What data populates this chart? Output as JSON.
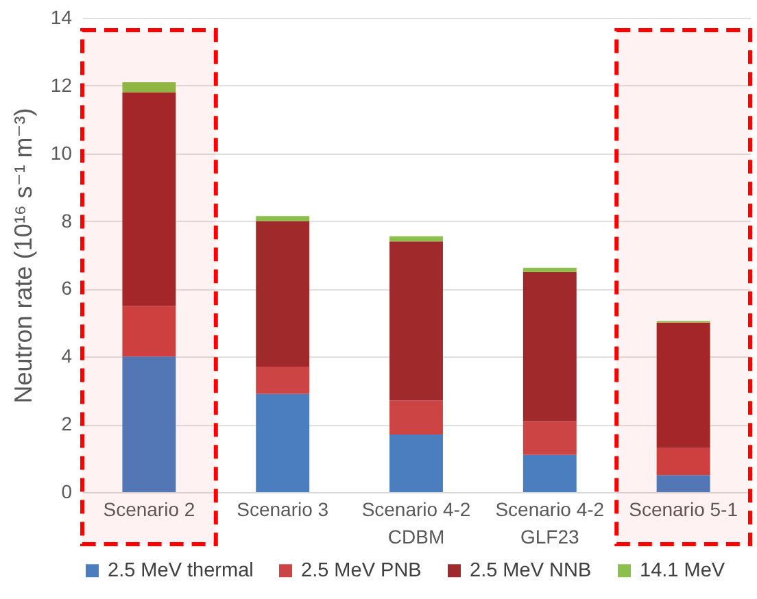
{
  "chart_data": {
    "type": "bar",
    "stacked": true,
    "ylabel": "Neutron rate (10¹⁶ s⁻¹ m⁻³)",
    "categories": [
      "Scenario 2",
      "Scenario 3",
      "Scenario 4-2\nCDBM",
      "Scenario 4-2\nGLF23",
      "Scenario 5-1"
    ],
    "series": [
      {
        "name": "2.5 MeV thermal",
        "color": "#4a7ebf",
        "values": [
          4.0,
          2.9,
          1.7,
          1.1,
          0.5
        ]
      },
      {
        "name": "2.5 MeV PNB",
        "color": "#cc4444",
        "values": [
          1.5,
          0.8,
          1.0,
          1.0,
          0.8
        ]
      },
      {
        "name": "2.5 MeV NNB",
        "color": "#a0292c",
        "values": [
          6.3,
          4.3,
          4.7,
          4.4,
          3.7
        ]
      },
      {
        "name": "14.1 MeV",
        "color": "#8dc04a",
        "values": [
          0.3,
          0.15,
          0.15,
          0.12,
          0.05
        ]
      }
    ],
    "ylim": [
      0,
      14
    ],
    "yticks": [
      0,
      2,
      4,
      6,
      8,
      10,
      12,
      14
    ],
    "grid": "y",
    "legend": "bottom",
    "bands": [
      {
        "axis": "x",
        "from": "Scenario 2",
        "to": "Scenario 2",
        "color": "#ff0000"
      },
      {
        "axis": "x",
        "from": "Scenario 5-1",
        "to": "Scenario 5-1",
        "color": "#ff0000"
      }
    ]
  }
}
